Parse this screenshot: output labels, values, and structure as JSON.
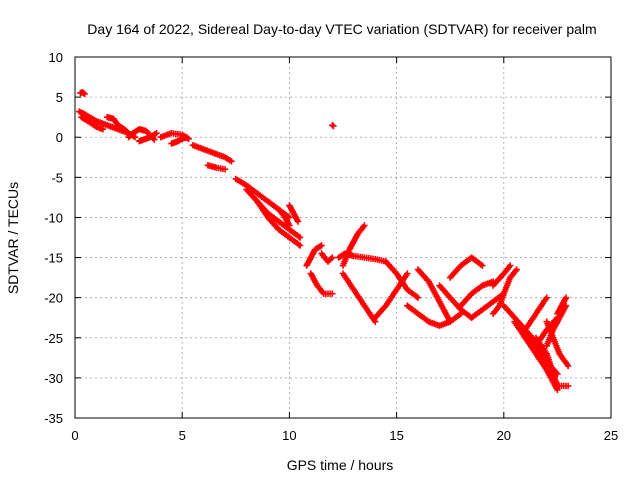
{
  "chart_data": {
    "type": "scatter",
    "title": "Day 164 of 2022, Sidereal Day-to-day VTEC variation (SDTVAR) for receiver palm",
    "xlabel": "GPS time / hours",
    "ylabel": "SDTVAR / TECUs",
    "xlim": [
      0,
      25
    ],
    "ylim": [
      -35,
      10
    ],
    "xticks": [
      0,
      5,
      10,
      15,
      20,
      25
    ],
    "yticks": [
      10,
      5,
      0,
      -5,
      -10,
      -15,
      -20,
      -25,
      -30,
      -35
    ],
    "grid": true,
    "marker": "+",
    "color": "#ff0000",
    "series": [
      {
        "name": "SDTVAR",
        "segments": [
          {
            "x": [
              0.2,
              0.5,
              1.0,
              1.5,
              2.0,
              2.5
            ],
            "y": [
              3.2,
              2.8,
              2.0,
              1.5,
              1.0,
              0.5
            ]
          },
          {
            "x": [
              0.25,
              0.35,
              0.45
            ],
            "y": [
              5.5,
              5.6,
              5.4
            ]
          },
          {
            "x": [
              0.3,
              0.6,
              1.0,
              1.3
            ],
            "y": [
              2.5,
              2.0,
              1.3,
              1.0
            ]
          },
          {
            "x": [
              1.5,
              1.8,
              2.0,
              2.3,
              2.5,
              2.8
            ],
            "y": [
              2.5,
              2.3,
              1.5,
              1.0,
              0.5,
              0.0
            ]
          },
          {
            "x": [
              2.5,
              2.7,
              3.0,
              3.3,
              3.5,
              3.7
            ],
            "y": [
              0.0,
              0.5,
              1.0,
              0.8,
              0.3,
              -0.3
            ]
          },
          {
            "x": [
              3.0,
              3.2,
              3.5,
              3.8
            ],
            "y": [
              -0.5,
              -0.3,
              0.0,
              0.5
            ]
          },
          {
            "x": [
              4.0,
              4.5,
              5.0,
              5.3
            ],
            "y": [
              0.0,
              0.5,
              0.3,
              -0.2
            ]
          },
          {
            "x": [
              4.5,
              4.8,
              5.0,
              5.2
            ],
            "y": [
              -0.8,
              -0.5,
              -0.2,
              0.0
            ]
          },
          {
            "x": [
              5.5,
              6.0,
              6.5,
              7.0,
              7.3
            ],
            "y": [
              -1.0,
              -1.5,
              -2.0,
              -2.5,
              -3.0
            ]
          },
          {
            "x": [
              6.2,
              6.6,
              7.0
            ],
            "y": [
              -3.5,
              -3.8,
              -4.0
            ]
          },
          {
            "x": [
              7.5,
              8.0,
              8.5,
              9.0,
              9.5,
              10.0
            ],
            "y": [
              -5.2,
              -6.0,
              -7.0,
              -8.0,
              -9.0,
              -10.0
            ]
          },
          {
            "x": [
              8.0,
              8.5,
              9.0,
              9.5,
              10.0,
              10.5
            ],
            "y": [
              -6.5,
              -8.0,
              -9.5,
              -10.5,
              -11.5,
              -12.5
            ]
          },
          {
            "x": [
              8.5,
              9.0,
              9.5,
              10.0,
              10.5
            ],
            "y": [
              -8.0,
              -10.0,
              -11.5,
              -12.5,
              -13.5
            ]
          },
          {
            "x": [
              9.5,
              9.8,
              10.0
            ],
            "y": [
              -9.0,
              -10.0,
              -11.0
            ]
          },
          {
            "x": [
              10.0,
              10.2,
              10.4
            ],
            "y": [
              -8.5,
              -9.5,
              -10.5
            ]
          },
          {
            "x": [
              12.0,
              12.05
            ],
            "y": [
              1.5,
              1.4
            ]
          },
          {
            "x": [
              10.8,
              11.0,
              11.2,
              11.5
            ],
            "y": [
              -16.0,
              -15.0,
              -14.0,
              -13.5
            ]
          },
          {
            "x": [
              11.0,
              11.3,
              11.6,
              12.0
            ],
            "y": [
              -17.0,
              -18.5,
              -19.5,
              -19.5
            ]
          },
          {
            "x": [
              11.5,
              11.8,
              12.0
            ],
            "y": [
              -14.5,
              -15.5,
              -15.0
            ]
          },
          {
            "x": [
              12.3,
              12.6,
              13.0,
              13.5,
              14.0,
              14.5
            ],
            "y": [
              -15.0,
              -14.5,
              -14.8,
              -15.0,
              -15.2,
              -15.5
            ]
          },
          {
            "x": [
              12.5,
              12.8,
              13.0,
              13.2,
              13.5
            ],
            "y": [
              -16.0,
              -14.0,
              -13.0,
              -12.0,
              -11.0
            ]
          },
          {
            "x": [
              12.5,
              13.0,
              13.5,
              14.0
            ],
            "y": [
              -17.0,
              -19.0,
              -21.0,
              -23.0
            ]
          },
          {
            "x": [
              14.0,
              14.5,
              15.0,
              15.5
            ],
            "y": [
              -22.5,
              -21.0,
              -19.0,
              -17.0
            ]
          },
          {
            "x": [
              14.5,
              15.0,
              15.5,
              16.0
            ],
            "y": [
              -15.5,
              -17.0,
              -19.0,
              -20.0
            ]
          },
          {
            "x": [
              15.5,
              16.0,
              16.5,
              17.0,
              17.5,
              18.0
            ],
            "y": [
              -21.0,
              -22.0,
              -23.0,
              -23.5,
              -23.0,
              -22.0
            ]
          },
          {
            "x": [
              16.0,
              16.5,
              17.0,
              17.5
            ],
            "y": [
              -16.5,
              -18.0,
              -20.5,
              -23.0
            ]
          },
          {
            "x": [
              17.0,
              17.5,
              18.0,
              18.5
            ],
            "y": [
              -18.5,
              -20.0,
              -21.5,
              -22.5
            ]
          },
          {
            "x": [
              17.5,
              18.0,
              18.5,
              19.0
            ],
            "y": [
              -17.5,
              -16.0,
              -15.0,
              -16.0
            ]
          },
          {
            "x": [
              18.0,
              18.5,
              19.0,
              19.5
            ],
            "y": [
              -21.0,
              -19.5,
              -18.5,
              -18.0
            ]
          },
          {
            "x": [
              18.5,
              19.0,
              19.5,
              20.0
            ],
            "y": [
              -22.5,
              -21.5,
              -20.5,
              -19.5
            ]
          },
          {
            "x": [
              19.5,
              20.0,
              20.3
            ],
            "y": [
              -18.5,
              -17.0,
              -16.0
            ]
          },
          {
            "x": [
              19.5,
              19.8,
              20.0,
              20.3,
              20.6
            ],
            "y": [
              -22.0,
              -21.0,
              -19.5,
              -17.5,
              -16.5
            ]
          },
          {
            "x": [
              20.0,
              20.5,
              21.0,
              21.5,
              22.0
            ],
            "y": [
              -21.0,
              -22.5,
              -24.0,
              -25.5,
              -27.0
            ]
          },
          {
            "x": [
              20.5,
              21.0,
              21.5,
              22.0,
              22.5
            ],
            "y": [
              -23.0,
              -25.0,
              -27.0,
              -29.0,
              -31.5
            ]
          },
          {
            "x": [
              21.0,
              21.5,
              22.0,
              22.5
            ],
            "y": [
              -24.0,
              -26.0,
              -28.0,
              -29.5
            ]
          },
          {
            "x": [
              21.5,
              22.0,
              22.5,
              23.0
            ],
            "y": [
              -25.0,
              -27.0,
              -31.0,
              -31.0
            ]
          },
          {
            "x": [
              22.0,
              22.3,
              22.6,
              23.0
            ],
            "y": [
              -23.0,
              -25.0,
              -27.0,
              -28.5
            ]
          },
          {
            "x": [
              22.5,
              22.7,
              22.9
            ],
            "y": [
              -22.0,
              -21.0,
              -20.0
            ]
          },
          {
            "x": [
              22.0,
              22.3,
              22.6,
              22.9
            ],
            "y": [
              -26.0,
              -24.0,
              -22.5,
              -21.0
            ]
          },
          {
            "x": [
              21.0,
              21.5,
              22.0
            ],
            "y": [
              -24.0,
              -22.0,
              -20.0
            ]
          },
          {
            "x": [
              21.5,
              22.0,
              22.5
            ],
            "y": [
              -26.0,
              -24.0,
              -22.5
            ]
          }
        ]
      }
    ]
  }
}
